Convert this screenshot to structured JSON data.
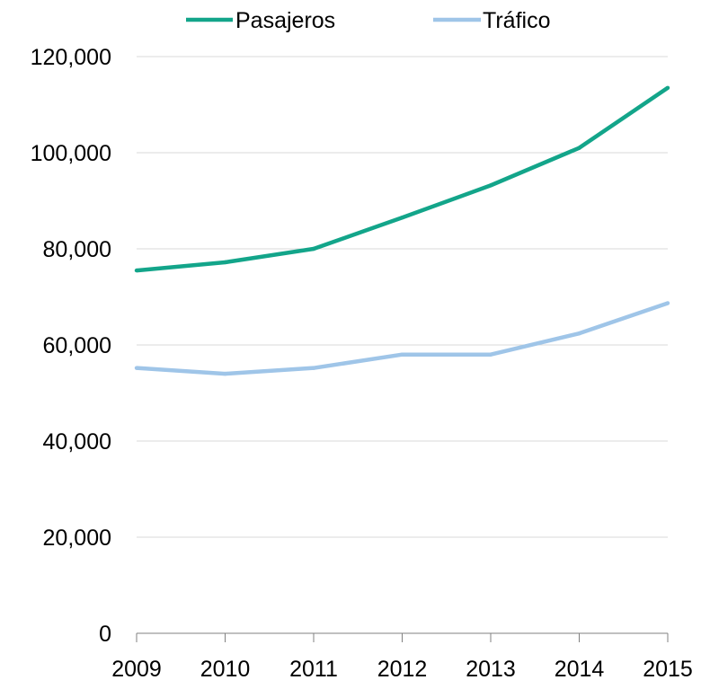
{
  "chart_data": {
    "type": "line",
    "title": "",
    "xlabel": "",
    "ylabel": "",
    "categories": [
      "2009",
      "2010",
      "2011",
      "2012",
      "2013",
      "2014",
      "2015"
    ],
    "series": [
      {
        "name": "Pasajeros",
        "color": "#13a58a",
        "values": [
          75500,
          77200,
          80000,
          86500,
          93200,
          101000,
          113500
        ]
      },
      {
        "name": "Tráfico",
        "color": "#9fc5e8",
        "values": [
          55200,
          54000,
          55200,
          58000,
          58000,
          62400,
          68700
        ]
      }
    ],
    "ylim": [
      0,
      120000
    ],
    "yticks": [
      "0",
      "20,000",
      "40,000",
      "60,000",
      "80,000",
      "100,000",
      "120,000"
    ],
    "ytick_values": [
      0,
      20000,
      40000,
      60000,
      80000,
      100000,
      120000
    ],
    "grid": true,
    "legend": "top-center"
  }
}
